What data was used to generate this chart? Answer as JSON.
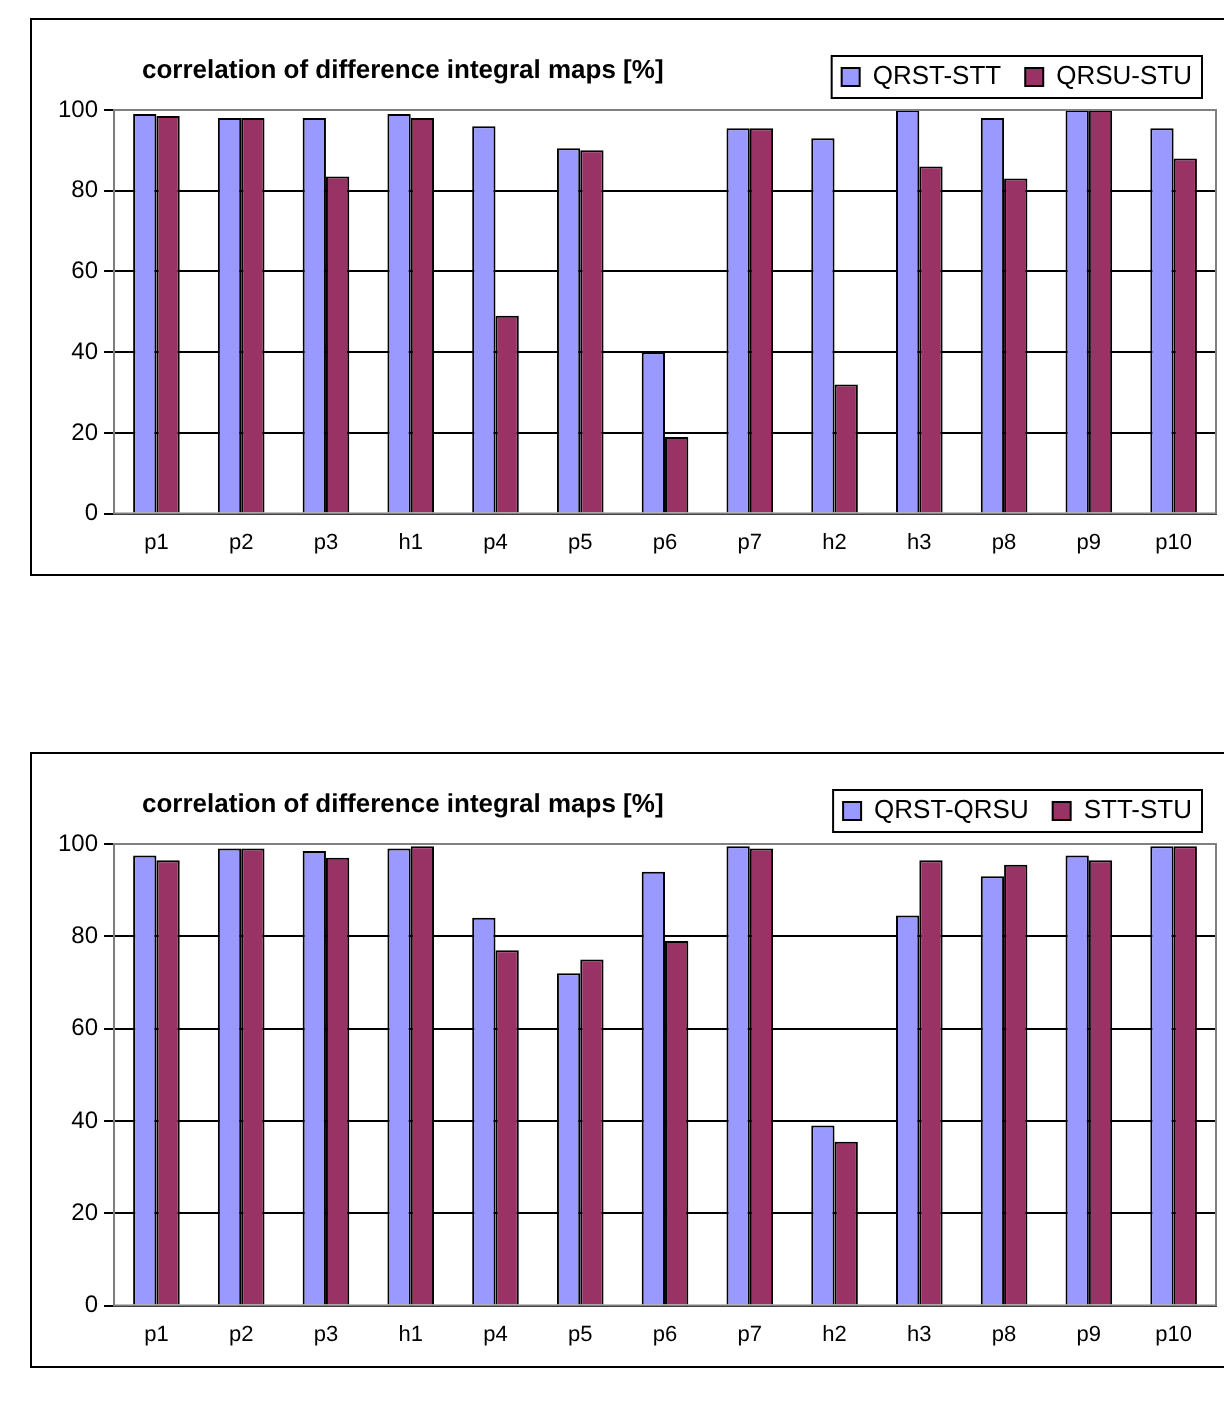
{
  "chart_data": [
    {
      "type": "bar",
      "title": "correlation of difference integral maps [%]",
      "categories": [
        "p1",
        "p2",
        "p3",
        "h1",
        "p4",
        "p5",
        "p6",
        "p7",
        "h2",
        "h3",
        "p8",
        "p9",
        "p10"
      ],
      "series": [
        {
          "name": "QRST-STT",
          "color": "#9999ff",
          "values": [
            99,
            98,
            98,
            99,
            96,
            90.5,
            40,
            95.5,
            93,
            100,
            98,
            100,
            95.5
          ]
        },
        {
          "name": "QRSU-STU",
          "color": "#993366",
          "values": [
            98.5,
            98,
            83.5,
            98,
            49,
            90,
            19,
            95.5,
            32,
            86,
            83,
            100,
            88
          ]
        }
      ],
      "ylim": [
        0,
        100
      ],
      "yticks": [
        0,
        20,
        40,
        60,
        80,
        100
      ],
      "grid": "y",
      "legend": "top right"
    },
    {
      "type": "bar",
      "title": "correlation of difference integral maps [%]",
      "categories": [
        "p1",
        "p2",
        "p3",
        "h1",
        "p4",
        "p5",
        "p6",
        "p7",
        "h2",
        "h3",
        "p8",
        "p9",
        "p10"
      ],
      "series": [
        {
          "name": "QRST-QRSU",
          "color": "#9999ff",
          "values": [
            97.5,
            99,
            98.5,
            99,
            84,
            72,
            94,
            99.5,
            39,
            84.5,
            93,
            97.5,
            99.5
          ]
        },
        {
          "name": "STT-STU",
          "color": "#993366",
          "values": [
            96.5,
            99,
            97,
            99.5,
            77,
            75,
            79,
            99,
            35.5,
            96.5,
            95.5,
            96.5,
            99.5
          ]
        }
      ],
      "ylim": [
        0,
        100
      ],
      "yticks": [
        0,
        20,
        40,
        60,
        80,
        100
      ],
      "grid": "y",
      "legend": "top right"
    }
  ]
}
